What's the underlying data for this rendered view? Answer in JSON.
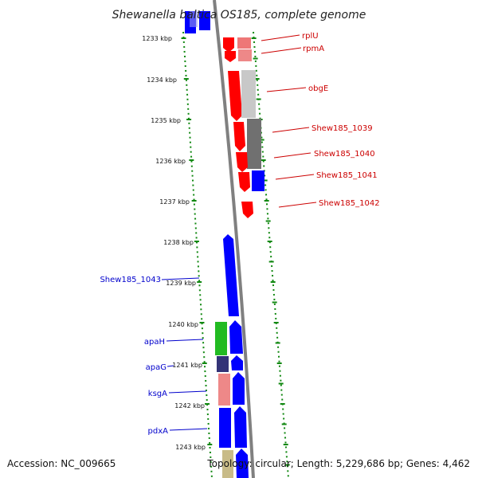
{
  "title": "Shewanella baltica OS185, complete genome",
  "footer": {
    "accession": "Accession: NC_009665",
    "topology": "Topology: circular; Length: 5,229,686 bp; Genes: 4,462"
  },
  "ticks": [
    "1233 kbp",
    "1234 kbp",
    "1235 kbp",
    "1236 kbp",
    "1237 kbp",
    "1238 kbp",
    "1239 kbp",
    "1240 kbp",
    "1241 kbp",
    "1242 kbp",
    "1243 kbp"
  ],
  "forward_genes": [
    "rplU",
    "rpmA",
    "obgE",
    "Shew185_1039",
    "Shew185_1040",
    "Shew185_1041",
    "Shew185_1042"
  ],
  "reverse_genes": [
    "Shew185_1043",
    "apaH",
    "apaG",
    "ksgA",
    "pdxA"
  ],
  "colors": {
    "forward_label": "#cc0000",
    "reverse_label": "#0000cc",
    "gene_red": "#ff0000",
    "gene_blue": "#0000ff",
    "backbone": "#808080",
    "dots": "#118811",
    "green_feature": "#22bb22",
    "navy_feature": "#333377",
    "tan_feature": "#c8bb88"
  }
}
